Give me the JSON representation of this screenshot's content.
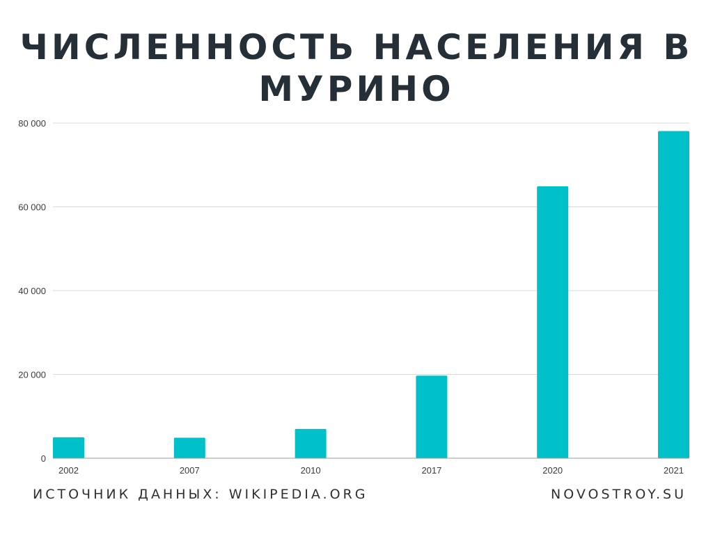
{
  "chart_data": {
    "type": "bar",
    "title": "Численность населения в Мурино",
    "categories": [
      "2002",
      "2007",
      "2010",
      "2017",
      "2020",
      "2021"
    ],
    "values": [
      5000,
      4900,
      7000,
      19700,
      64900,
      78100
    ],
    "ylim": [
      0,
      80000
    ],
    "yticks": [
      0,
      20000,
      40000,
      60000,
      80000
    ],
    "ytick_labels": [
      "0",
      "20 000",
      "40 000",
      "60 000",
      "80 000"
    ],
    "xlabel": "",
    "ylabel": "",
    "grid": true,
    "bar_color": "#00c1c9",
    "grid_color": "#d9d9d9",
    "title_color": "#242f38"
  },
  "footer": {
    "source": "ИСТОЧНИК ДАННЫХ: WIKIPEDIA.ORG",
    "brand": "NOVOSTROY.SU"
  }
}
